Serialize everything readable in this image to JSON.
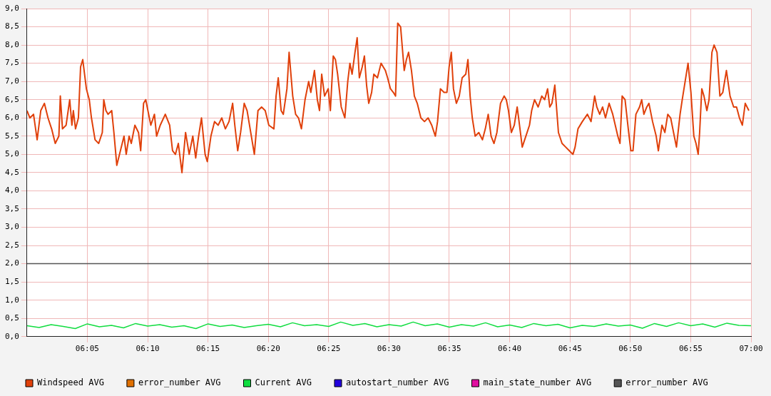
{
  "chart_data": {
    "type": "line",
    "legend": "bottom",
    "grid": true,
    "marker": "none",
    "line_style": "solid",
    "xlim": [
      6,
      7
    ],
    "xticks": [
      {
        "value": 6.0833,
        "label": "06:05"
      },
      {
        "value": 6.1667,
        "label": "06:10"
      },
      {
        "value": 6.25,
        "label": "06:15"
      },
      {
        "value": 6.3333,
        "label": "06:20"
      },
      {
        "value": 6.4167,
        "label": "06:25"
      },
      {
        "value": 6.5,
        "label": "06:30"
      },
      {
        "value": 6.5833,
        "label": "06:35"
      },
      {
        "value": 6.6667,
        "label": "06:40"
      },
      {
        "value": 6.75,
        "label": "06:45"
      },
      {
        "value": 6.8333,
        "label": "06:50"
      },
      {
        "value": 6.9167,
        "label": "06:55"
      },
      {
        "value": 7,
        "label": "07:00"
      }
    ],
    "ylim": [
      0,
      9
    ],
    "yticks": [
      {
        "value": 0,
        "label": "0,0"
      },
      {
        "value": 0.5,
        "label": "0,5"
      },
      {
        "value": 1,
        "label": "1,0"
      },
      {
        "value": 1.5,
        "label": "1,5"
      },
      {
        "value": 2,
        "label": "2,0"
      },
      {
        "value": 2.5,
        "label": "2,5"
      },
      {
        "value": 3,
        "label": "3,0"
      },
      {
        "value": 3.5,
        "label": "3,5"
      },
      {
        "value": 4,
        "label": "4,0"
      },
      {
        "value": 4.5,
        "label": "4,5"
      },
      {
        "value": 5,
        "label": "5,0"
      },
      {
        "value": 5.5,
        "label": "5,5"
      },
      {
        "value": 6,
        "label": "6,0"
      },
      {
        "value": 6.5,
        "label": "6,5"
      },
      {
        "value": 7,
        "label": "7,0"
      },
      {
        "value": 7.5,
        "label": "7,5"
      },
      {
        "value": 8,
        "label": "8,0"
      },
      {
        "value": 8.5,
        "label": "8,5"
      },
      {
        "value": 9,
        "label": "9,0"
      }
    ],
    "series": [
      {
        "name": "Windspeed AVG",
        "color": "#e0400a",
        "x": [
          6,
          6.004,
          6.009,
          6.014,
          6.019,
          6.024,
          6.029,
          6.034,
          6.039,
          6.044,
          6.046,
          6.049,
          6.054,
          6.059,
          6.062,
          6.064,
          6.067,
          6.071,
          6.074,
          6.077,
          6.082,
          6.086,
          6.089,
          6.094,
          6.099,
          6.104,
          6.106,
          6.109,
          6.112,
          6.117,
          6.12,
          6.124,
          6.129,
          6.134,
          6.137,
          6.141,
          6.144,
          6.149,
          6.154,
          6.157,
          6.161,
          6.164,
          6.169,
          6.171,
          6.176,
          6.179,
          6.184,
          6.191,
          6.197,
          6.201,
          6.205,
          6.209,
          6.214,
          6.219,
          6.224,
          6.229,
          6.233,
          6.237,
          6.241,
          6.246,
          6.249,
          6.254,
          6.259,
          6.264,
          6.269,
          6.274,
          6.279,
          6.284,
          6.287,
          6.291,
          6.295,
          6.3,
          6.304,
          6.309,
          6.314,
          6.319,
          6.324,
          6.329,
          6.334,
          6.341,
          6.344,
          6.347,
          6.351,
          6.354,
          6.359,
          6.362,
          6.367,
          6.371,
          6.375,
          6.379,
          6.384,
          6.389,
          6.392,
          6.397,
          6.401,
          6.404,
          6.407,
          6.411,
          6.416,
          6.419,
          6.423,
          6.426,
          6.429,
          6.434,
          6.439,
          6.443,
          6.446,
          6.449,
          6.453,
          6.456,
          6.459,
          6.463,
          6.466,
          6.469,
          6.472,
          6.476,
          6.479,
          6.484,
          6.489,
          6.492,
          6.495,
          6.498,
          6.502,
          6.506,
          6.509,
          6.512,
          6.516,
          6.521,
          6.524,
          6.527,
          6.531,
          6.535,
          6.539,
          6.544,
          6.549,
          6.554,
          6.559,
          6.564,
          6.567,
          6.571,
          6.576,
          6.58,
          6.583,
          6.586,
          6.589,
          6.593,
          6.597,
          6.601,
          6.606,
          6.609,
          6.612,
          6.615,
          6.619,
          6.624,
          6.629,
          6.633,
          6.637,
          6.641,
          6.645,
          6.649,
          6.654,
          6.659,
          6.662,
          6.665,
          6.669,
          6.673,
          6.677,
          6.679,
          6.684,
          6.689,
          6.694,
          6.697,
          6.701,
          6.706,
          6.711,
          6.715,
          6.719,
          6.722,
          6.725,
          6.729,
          6.734,
          6.739,
          6.744,
          6.749,
          6.754,
          6.757,
          6.761,
          6.767,
          6.774,
          6.779,
          6.784,
          6.787,
          6.791,
          6.795,
          6.799,
          6.804,
          6.809,
          6.816,
          6.819,
          6.822,
          6.826,
          6.831,
          6.834,
          6.837,
          6.841,
          6.846,
          6.849,
          6.852,
          6.856,
          6.859,
          6.864,
          6.869,
          6.872,
          6.877,
          6.881,
          6.885,
          6.889,
          6.893,
          6.897,
          6.902,
          6.905,
          6.909,
          6.913,
          6.917,
          6.921,
          6.924,
          6.927,
          6.929,
          6.932,
          6.935,
          6.939,
          6.942,
          6.946,
          6.949,
          6.953,
          6.957,
          6.961,
          6.966,
          6.971,
          6.976,
          6.98,
          6.984,
          6.988,
          6.992,
          6.997
        ],
        "values": [
          6.2,
          6.0,
          6.1,
          5.4,
          6.2,
          6.4,
          6.0,
          5.7,
          5.3,
          5.5,
          6.6,
          5.7,
          5.8,
          6.5,
          5.8,
          6.2,
          5.7,
          6.0,
          7.4,
          7.6,
          6.8,
          6.5,
          6.0,
          5.4,
          5.3,
          5.6,
          6.5,
          6.2,
          6.1,
          6.2,
          5.6,
          4.7,
          5.1,
          5.5,
          5.0,
          5.5,
          5.3,
          5.8,
          5.6,
          5.1,
          6.4,
          6.5,
          6.0,
          5.8,
          6.1,
          5.5,
          5.8,
          6.1,
          5.8,
          5.1,
          5.0,
          5.3,
          4.5,
          5.6,
          5.0,
          5.5,
          4.9,
          5.5,
          6.0,
          5.0,
          4.8,
          5.5,
          5.9,
          5.8,
          6.0,
          5.7,
          5.9,
          6.4,
          5.8,
          5.1,
          5.6,
          6.4,
          6.2,
          5.6,
          5.0,
          6.2,
          6.3,
          6.2,
          5.8,
          5.7,
          6.6,
          7.1,
          6.2,
          6.1,
          6.8,
          7.8,
          6.6,
          6.1,
          6.0,
          5.7,
          6.5,
          7.0,
          6.7,
          7.3,
          6.5,
          6.2,
          7.2,
          6.6,
          6.8,
          6.2,
          7.7,
          7.6,
          7.2,
          6.3,
          6.0,
          7.0,
          7.5,
          7.2,
          7.8,
          8.2,
          7.1,
          7.4,
          7.7,
          6.9,
          6.4,
          6.7,
          7.2,
          7.1,
          7.5,
          7.4,
          7.3,
          7.1,
          6.8,
          6.7,
          6.6,
          8.6,
          8.5,
          7.3,
          7.6,
          7.8,
          7.3,
          6.6,
          6.4,
          6.0,
          5.9,
          6.0,
          5.8,
          5.5,
          5.9,
          6.8,
          6.7,
          6.7,
          7.4,
          7.8,
          6.8,
          6.4,
          6.6,
          7.1,
          7.2,
          7.6,
          6.6,
          6.0,
          5.5,
          5.6,
          5.4,
          5.7,
          6.1,
          5.5,
          5.3,
          5.6,
          6.4,
          6.6,
          6.5,
          6.2,
          5.6,
          5.8,
          6.3,
          6.0,
          5.2,
          5.5,
          5.8,
          6.2,
          6.5,
          6.3,
          6.6,
          6.5,
          6.8,
          6.3,
          6.4,
          6.9,
          5.6,
          5.3,
          5.2,
          5.1,
          5.0,
          5.2,
          5.7,
          5.9,
          6.1,
          5.9,
          6.6,
          6.3,
          6.1,
          6.3,
          6.0,
          6.4,
          6.1,
          5.5,
          5.3,
          6.6,
          6.5,
          5.6,
          5.1,
          5.1,
          6.1,
          6.3,
          6.5,
          6.1,
          6.3,
          6.4,
          5.9,
          5.5,
          5.1,
          5.8,
          5.6,
          6.1,
          6.0,
          5.6,
          5.2,
          6.1,
          6.5,
          7.0,
          7.5,
          6.7,
          5.5,
          5.3,
          5.0,
          5.6,
          6.8,
          6.6,
          6.2,
          6.5,
          7.8,
          8.0,
          7.8,
          6.6,
          6.7,
          7.3,
          6.6,
          6.3,
          6.3,
          6.0,
          5.8,
          6.4,
          6.2
        ]
      },
      {
        "name": "error_number AVG",
        "color": "#e07000"
      },
      {
        "name": "Current AVG",
        "color": "#10dd40",
        "x": [
          6,
          6.0167,
          6.0333,
          6.05,
          6.0667,
          6.0833,
          6.1,
          6.1167,
          6.1333,
          6.15,
          6.1667,
          6.1833,
          6.2,
          6.2167,
          6.2333,
          6.25,
          6.2667,
          6.2833,
          6.3,
          6.3167,
          6.3333,
          6.35,
          6.3667,
          6.3833,
          6.4,
          6.4167,
          6.4333,
          6.45,
          6.4667,
          6.4833,
          6.5,
          6.5167,
          6.5333,
          6.55,
          6.5667,
          6.5833,
          6.6,
          6.6167,
          6.6333,
          6.65,
          6.6667,
          6.6833,
          6.7,
          6.7167,
          6.7333,
          6.75,
          6.7667,
          6.7833,
          6.8,
          6.8167,
          6.8333,
          6.85,
          6.8667,
          6.8833,
          6.9,
          6.9167,
          6.9333,
          6.95,
          6.9667,
          6.9833,
          7
        ],
        "values": [
          0.3,
          0.25,
          0.33,
          0.28,
          0.22,
          0.35,
          0.27,
          0.31,
          0.24,
          0.36,
          0.29,
          0.33,
          0.26,
          0.3,
          0.22,
          0.35,
          0.28,
          0.32,
          0.25,
          0.3,
          0.34,
          0.27,
          0.38,
          0.3,
          0.33,
          0.28,
          0.4,
          0.31,
          0.36,
          0.27,
          0.33,
          0.29,
          0.4,
          0.3,
          0.35,
          0.26,
          0.33,
          0.29,
          0.38,
          0.27,
          0.32,
          0.25,
          0.36,
          0.3,
          0.34,
          0.24,
          0.31,
          0.28,
          0.35,
          0.29,
          0.32,
          0.23,
          0.36,
          0.28,
          0.38,
          0.3,
          0.35,
          0.26,
          0.37,
          0.31,
          0.3
        ]
      },
      {
        "name": "autostart_number AVG",
        "color": "#2200dd"
      },
      {
        "name": "main_state_number AVG",
        "color": "#e010a0"
      },
      {
        "name": "error_number AVG",
        "color": "#555555",
        "x": [
          6,
          7
        ],
        "values": [
          2,
          2
        ]
      }
    ]
  }
}
